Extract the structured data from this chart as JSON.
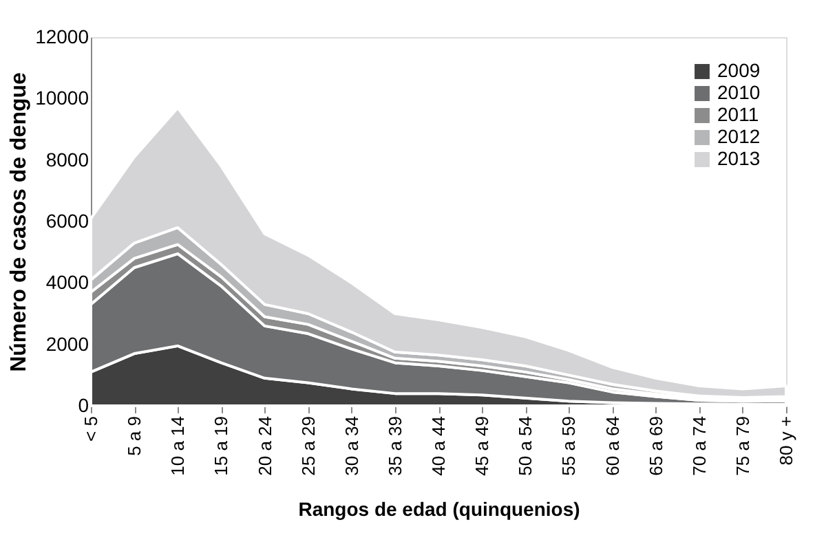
{
  "chart_data": {
    "type": "area",
    "stacked": true,
    "xlabel": "Rangos de edad (quinquenios)",
    "ylabel": "Número de casos de dengue",
    "categories": [
      "< 5",
      "5 a 9",
      "10 a 14",
      "15 a 19",
      "20 a 24",
      "25 a 29",
      "30 a 34",
      "35 a 39",
      "40 a 44",
      "45 a 49",
      "50 a 54",
      "55 a 59",
      "60 a 64",
      "65 a 69",
      "70 a 74",
      "75 a 79",
      "80 y +"
    ],
    "series": [
      {
        "name": "2009",
        "color": "#404040",
        "values": [
          1100,
          1700,
          1950,
          1400,
          900,
          750,
          550,
          400,
          400,
          350,
          250,
          150,
          100,
          80,
          60,
          50,
          50
        ]
      },
      {
        "name": "2010",
        "color": "#6d6e70",
        "values": [
          2200,
          2800,
          3000,
          2500,
          1700,
          1600,
          1300,
          1000,
          900,
          800,
          700,
          600,
          350,
          220,
          120,
          100,
          110
        ]
      },
      {
        "name": "2011",
        "color": "#8c8c8c",
        "values": [
          400,
          300,
          300,
          300,
          300,
          300,
          250,
          150,
          150,
          150,
          150,
          100,
          100,
          80,
          60,
          50,
          60
        ]
      },
      {
        "name": "2012",
        "color": "#b5b6b8",
        "values": [
          400,
          500,
          550,
          400,
          400,
          350,
          300,
          200,
          200,
          200,
          200,
          150,
          150,
          100,
          80,
          70,
          80
        ]
      },
      {
        "name": "2013",
        "color": "#d4d4d6",
        "values": [
          2000,
          2800,
          3900,
          3200,
          2300,
          1900,
          1600,
          1250,
          1150,
          1050,
          950,
          800,
          550,
          420,
          330,
          280,
          350
        ]
      }
    ],
    "ylim": [
      0,
      12000
    ],
    "yticks": [
      0,
      2000,
      4000,
      6000,
      8000,
      10000,
      12000
    ],
    "grid": false,
    "legend": "top right"
  }
}
